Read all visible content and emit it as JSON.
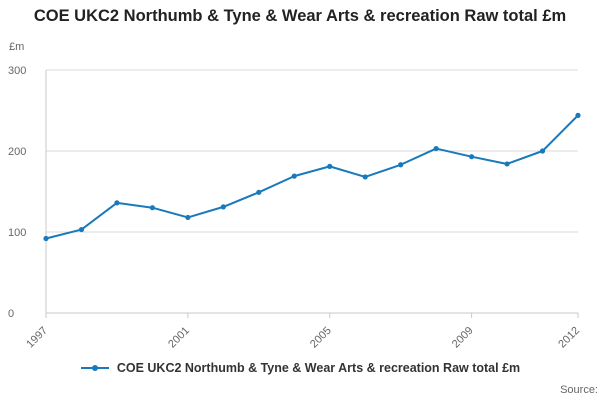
{
  "chart_data": {
    "type": "line",
    "title": "COE UKC2 Northumb & Tyne & Wear Arts & recreation Raw total £m",
    "ylabel": "£m",
    "x": [
      1997,
      1998,
      1999,
      2000,
      2001,
      2002,
      2003,
      2004,
      2005,
      2006,
      2007,
      2008,
      2009,
      2010,
      2011,
      2012
    ],
    "values": [
      92,
      103,
      136,
      130,
      118,
      131,
      149,
      169,
      181,
      168,
      183,
      203,
      193,
      184,
      200,
      244
    ],
    "ylim": [
      0,
      300
    ],
    "yticks": [
      0,
      100,
      200,
      300
    ],
    "xticks": [
      1997,
      2001,
      2005,
      2009,
      2012
    ],
    "grid": true,
    "legend_position": "bottom",
    "legend": "COE UKC2 Northumb & Tyne & Wear Arts & recreation Raw total £m",
    "line_color": "#1879bd",
    "axis_color": "#c8c8c8",
    "grid_color": "#d9d9d9",
    "tick_label_color": "#666666",
    "source_label": "Source:"
  }
}
